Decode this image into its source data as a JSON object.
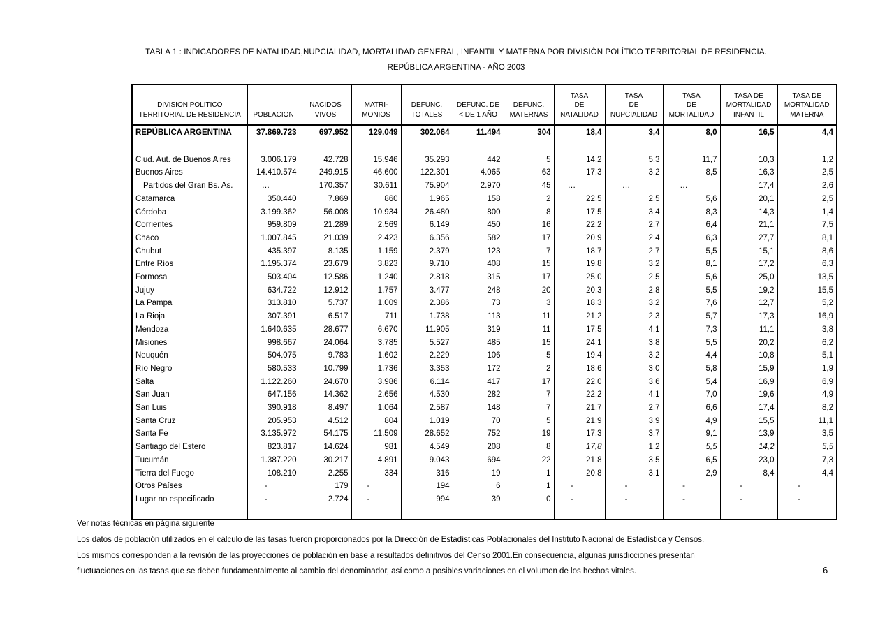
{
  "title": {
    "line1": "TABLA 1 : INDICADORES DE NATALIDAD,NUPCIALIDAD, MORTALIDAD GENERAL, INFANTIL Y MATERNA POR DIVISIÓN POLÍTICO TERRITORIAL DE RESIDENCIA.",
    "line2": "REPÚBLICA ARGENTINA - AÑO 2003"
  },
  "table": {
    "columns": [
      "DIVISION  POLITICO\nTERRITORIAL DE RESIDENCIA",
      "POBLACION",
      "NACIDOS\nVIVOS",
      "MATRI-\nMONIOS",
      "DEFUNC.\nTOTALES",
      "DEFUNC. DE\n<  DE 1 AÑO",
      "DEFUNC.\nMATERNAS",
      "TASA\nDE\nNATALIDAD",
      "TASA\nDE\nNUPCIALIDAD",
      "TASA\nDE\nMORTALIDAD",
      "TASA DE\nMORTALIDAD\nINFANTIL",
      "TASA DE\nMORTALIDAD\nMATERNA"
    ],
    "summary": {
      "name": "REPÚBLICA ARGENTINA",
      "cells": [
        "37.869.723",
        "697.952",
        "129.049",
        "302.064",
        "11.494",
        "304",
        "18,4",
        "3,4",
        "8,0",
        "16,5",
        "4,4"
      ]
    },
    "rows": [
      {
        "name": "Ciud. Aut. de  Buenos Aires",
        "indent": false,
        "italic_cells": [],
        "cells": [
          "3.006.179",
          "42.728",
          "15.946",
          "35.293",
          "442",
          "5",
          "14,2",
          "5,3",
          "11,7",
          "10,3",
          "1,2"
        ]
      },
      {
        "name": "Buenos Aires",
        "indent": false,
        "italic_cells": [],
        "cells": [
          "14.410.574",
          "249.915",
          "46.600",
          "122.301",
          "4.065",
          "63",
          "17,3",
          "3,2",
          "8,5",
          "16,3",
          "2,5"
        ]
      },
      {
        "name": "Partidos del Gran Bs. As.",
        "indent": true,
        "italic_cells": [],
        "cells": [
          "…",
          "170.357",
          "30.611",
          "75.904",
          "2.970",
          "45",
          "…",
          "…",
          "…",
          "17,4",
          "2,6"
        ]
      },
      {
        "name": "Catamarca",
        "indent": false,
        "italic_cells": [],
        "cells": [
          "350.440",
          "7.869",
          "860",
          "1.965",
          "158",
          "2",
          "22,5",
          "2,5",
          "5,6",
          "20,1",
          "2,5"
        ]
      },
      {
        "name": "Córdoba",
        "indent": false,
        "italic_cells": [],
        "cells": [
          "3.199.362",
          "56.008",
          "10.934",
          "26.480",
          "800",
          "8",
          "17,5",
          "3,4",
          "8,3",
          "14,3",
          "1,4"
        ]
      },
      {
        "name": "Corrientes",
        "indent": false,
        "italic_cells": [],
        "cells": [
          "959.809",
          "21.289",
          "2.569",
          "6.149",
          "450",
          "16",
          "22,2",
          "2,7",
          "6,4",
          "21,1",
          "7,5"
        ]
      },
      {
        "name": "Chaco",
        "indent": false,
        "italic_cells": [],
        "cells": [
          "1.007.845",
          "21.039",
          "2.423",
          "6.356",
          "582",
          "17",
          "20,9",
          "2,4",
          "6,3",
          "27,7",
          "8,1"
        ]
      },
      {
        "name": "Chubut",
        "indent": false,
        "italic_cells": [],
        "cells": [
          "435.397",
          "8.135",
          "1.159",
          "2.379",
          "123",
          "7",
          "18,7",
          "2,7",
          "5,5",
          "15,1",
          "8,6"
        ]
      },
      {
        "name": "Entre Ríos",
        "indent": false,
        "italic_cells": [],
        "cells": [
          "1.195.374",
          "23.679",
          "3.823",
          "9.710",
          "408",
          "15",
          "19,8",
          "3,2",
          "8,1",
          "17,2",
          "6,3"
        ]
      },
      {
        "name": "Formosa",
        "indent": false,
        "italic_cells": [],
        "cells": [
          "503.404",
          "12.586",
          "1.240",
          "2.818",
          "315",
          "17",
          "25,0",
          "2,5",
          "5,6",
          "25,0",
          "13,5"
        ]
      },
      {
        "name": "Jujuy",
        "indent": false,
        "italic_cells": [],
        "cells": [
          "634.722",
          "12.912",
          "1.757",
          "3.477",
          "248",
          "20",
          "20,3",
          "2,8",
          "5,5",
          "19,2",
          "15,5"
        ]
      },
      {
        "name": "La Pampa",
        "indent": false,
        "italic_cells": [],
        "cells": [
          "313.810",
          "5.737",
          "1.009",
          "2.386",
          "73",
          "3",
          "18,3",
          "3,2",
          "7,6",
          "12,7",
          "5,2"
        ]
      },
      {
        "name": "La Rioja",
        "indent": false,
        "italic_cells": [],
        "cells": [
          "307.391",
          "6.517",
          "711",
          "1.738",
          "113",
          "11",
          "21,2",
          "2,3",
          "5,7",
          "17,3",
          "16,9"
        ]
      },
      {
        "name": "Mendoza",
        "indent": false,
        "italic_cells": [],
        "cells": [
          "1.640.635",
          "28.677",
          "6.670",
          "11.905",
          "319",
          "11",
          "17,5",
          "4,1",
          "7,3",
          "11,1",
          "3,8"
        ]
      },
      {
        "name": "Misiones",
        "indent": false,
        "italic_cells": [],
        "cells": [
          "998.667",
          "24.064",
          "3.785",
          "5.527",
          "485",
          "15",
          "24,1",
          "3,8",
          "5,5",
          "20,2",
          "6,2"
        ]
      },
      {
        "name": "Neuquén",
        "indent": false,
        "italic_cells": [],
        "cells": [
          "504.075",
          "9.783",
          "1.602",
          "2.229",
          "106",
          "5",
          "19,4",
          "3,2",
          "4,4",
          "10,8",
          "5,1"
        ]
      },
      {
        "name": "Río Negro",
        "indent": false,
        "italic_cells": [],
        "cells": [
          "580.533",
          "10.799",
          "1.736",
          "3.353",
          "172",
          "2",
          "18,6",
          "3,0",
          "5,8",
          "15,9",
          "1,9"
        ]
      },
      {
        "name": "Salta",
        "indent": false,
        "italic_cells": [],
        "cells": [
          "1.122.260",
          "24.670",
          "3.986",
          "6.114",
          "417",
          "17",
          "22,0",
          "3,6",
          "5,4",
          "16,9",
          "6,9"
        ]
      },
      {
        "name": "San Juan",
        "indent": false,
        "italic_cells": [],
        "cells": [
          "647.156",
          "14.362",
          "2.656",
          "4.530",
          "282",
          "7",
          "22,2",
          "4,1",
          "7,0",
          "19,6",
          "4,9"
        ]
      },
      {
        "name": "San Luis",
        "indent": false,
        "italic_cells": [],
        "cells": [
          "390.918",
          "8.497",
          "1.064",
          "2.587",
          "148",
          "7",
          "21,7",
          "2,7",
          "6,6",
          "17,4",
          "8,2"
        ]
      },
      {
        "name": "Santa Cruz",
        "indent": false,
        "italic_cells": [],
        "cells": [
          "205.953",
          "4.512",
          "804",
          "1.019",
          "70",
          "5",
          "21,9",
          "3,9",
          "4,9",
          "15,5",
          "11,1"
        ]
      },
      {
        "name": "Santa Fe",
        "indent": false,
        "italic_cells": [],
        "cells": [
          "3.135.972",
          "54.175",
          "11.509",
          "28.652",
          "752",
          "19",
          "17,3",
          "3,7",
          "9,1",
          "13,9",
          "3,5"
        ]
      },
      {
        "name": "Santiago del Estero",
        "indent": false,
        "italic_cells": [
          6,
          8,
          9,
          10
        ],
        "cells": [
          "823.817",
          "14.624",
          "981",
          "4.549",
          "208",
          "8",
          "17,8",
          "1,2",
          "5,5",
          "14,2",
          "5,5"
        ]
      },
      {
        "name": "Tucumán",
        "indent": false,
        "italic_cells": [],
        "cells": [
          "1.387.220",
          "30.217",
          "4.891",
          "9.043",
          "694",
          "22",
          "21,8",
          "3,5",
          "6,5",
          "23,0",
          "7,3"
        ]
      },
      {
        "name": "Tierra del Fuego",
        "indent": false,
        "italic_cells": [],
        "cells": [
          "108.210",
          "2.255",
          "334",
          "316",
          "19",
          "1",
          "20,8",
          "3,1",
          "2,9",
          "8,4",
          "4,4"
        ]
      },
      {
        "name": "Otros Países",
        "indent": false,
        "italic_cells": [],
        "cells": [
          "-",
          "179",
          "-",
          "194",
          "6",
          "1",
          "-",
          "-",
          "-",
          "-",
          "-"
        ]
      },
      {
        "name": "Lugar no especificado",
        "indent": false,
        "italic_cells": [],
        "cells": [
          "-",
          "2.724",
          "-",
          "994",
          "39",
          "0",
          "-",
          "-",
          "-",
          "-",
          "-"
        ]
      }
    ]
  },
  "notes": [
    "Ver notas técnicas en página siguiente",
    "Los datos de población utilizados en el cálculo de las tasas fueron proporcionados por la Dirección de Estadísticas Poblacionales del Instituto Nacional de Estadística y Censos.",
    "Los mismos corresponden a la revisión de las proyecciones de población en base a resultados definitivos del Censo 2001.En consecuencia, algunas jurisdicciones presentan",
    "fluctuaciones en las tasas que se deben fundamentalmente al cambio del denominador, así como a posibles variaciones en el volumen de los hechos vitales."
  ],
  "page_number": "6"
}
